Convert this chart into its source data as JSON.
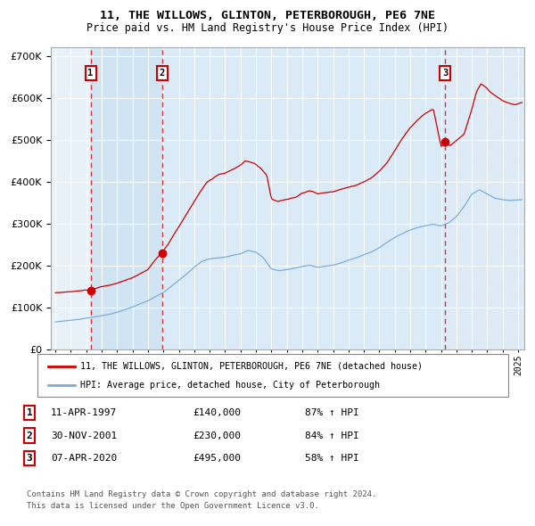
{
  "title1": "11, THE WILLOWS, GLINTON, PETERBOROUGH, PE6 7NE",
  "title2": "Price paid vs. HM Land Registry's House Price Index (HPI)",
  "sale1_date": 1997.28,
  "sale1_price": 140000,
  "sale2_date": 2001.92,
  "sale2_price": 230000,
  "sale3_date": 2020.27,
  "sale3_price": 495000,
  "xlim_left": 1994.7,
  "xlim_right": 2025.4,
  "ylim_bottom": 0,
  "ylim_top": 720000,
  "red_color": "#cc0000",
  "blue_color": "#7aaed6",
  "bg_color": "#e8f0f8",
  "span_color": "#d0e4f4",
  "legend_label1": "11, THE WILLOWS, GLINTON, PETERBOROUGH, PE6 7NE (detached house)",
  "legend_label2": "HPI: Average price, detached house, City of Peterborough",
  "table_data": [
    [
      "1",
      "11-APR-1997",
      "£140,000",
      "87% ↑ HPI"
    ],
    [
      "2",
      "30-NOV-2001",
      "£230,000",
      "84% ↑ HPI"
    ],
    [
      "3",
      "07-APR-2020",
      "£495,000",
      "58% ↑ HPI"
    ]
  ],
  "footnote1": "Contains HM Land Registry data © Crown copyright and database right 2024.",
  "footnote2": "This data is licensed under the Open Government Licence v3.0."
}
